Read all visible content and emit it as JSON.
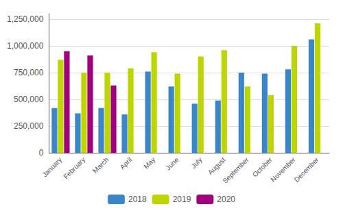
{
  "chart_data": {
    "type": "bar",
    "categories": [
      "January",
      "February",
      "March",
      "April",
      "May",
      "June",
      "July",
      "August",
      "September",
      "October",
      "November",
      "December"
    ],
    "series": [
      {
        "name": "2018",
        "color": "#3a86c8",
        "values": [
          420000,
          370000,
          420000,
          360000,
          760000,
          620000,
          460000,
          490000,
          750000,
          740000,
          780000,
          1060000
        ]
      },
      {
        "name": "2019",
        "color": "#bed600",
        "values": [
          870000,
          750000,
          750000,
          790000,
          940000,
          740000,
          900000,
          960000,
          620000,
          540000,
          1000000,
          1210000
        ]
      },
      {
        "name": "2020",
        "color": "#a0007c",
        "values": [
          950000,
          910000,
          630000,
          null,
          null,
          null,
          null,
          null,
          null,
          null,
          null,
          null
        ]
      }
    ],
    "ylim": [
      0,
      1300000
    ],
    "yticks": [
      0,
      {
        "value": 250000,
        "label": "250,000"
      },
      {
        "value": 500000,
        "label": "500,000"
      },
      {
        "value": 750000,
        "label": "750,000"
      },
      {
        "value": 1000000,
        "label": "1,000,000"
      },
      {
        "value": 1250000,
        "label": "1,250,000"
      }
    ],
    "grid": true,
    "legend": "bottom"
  }
}
